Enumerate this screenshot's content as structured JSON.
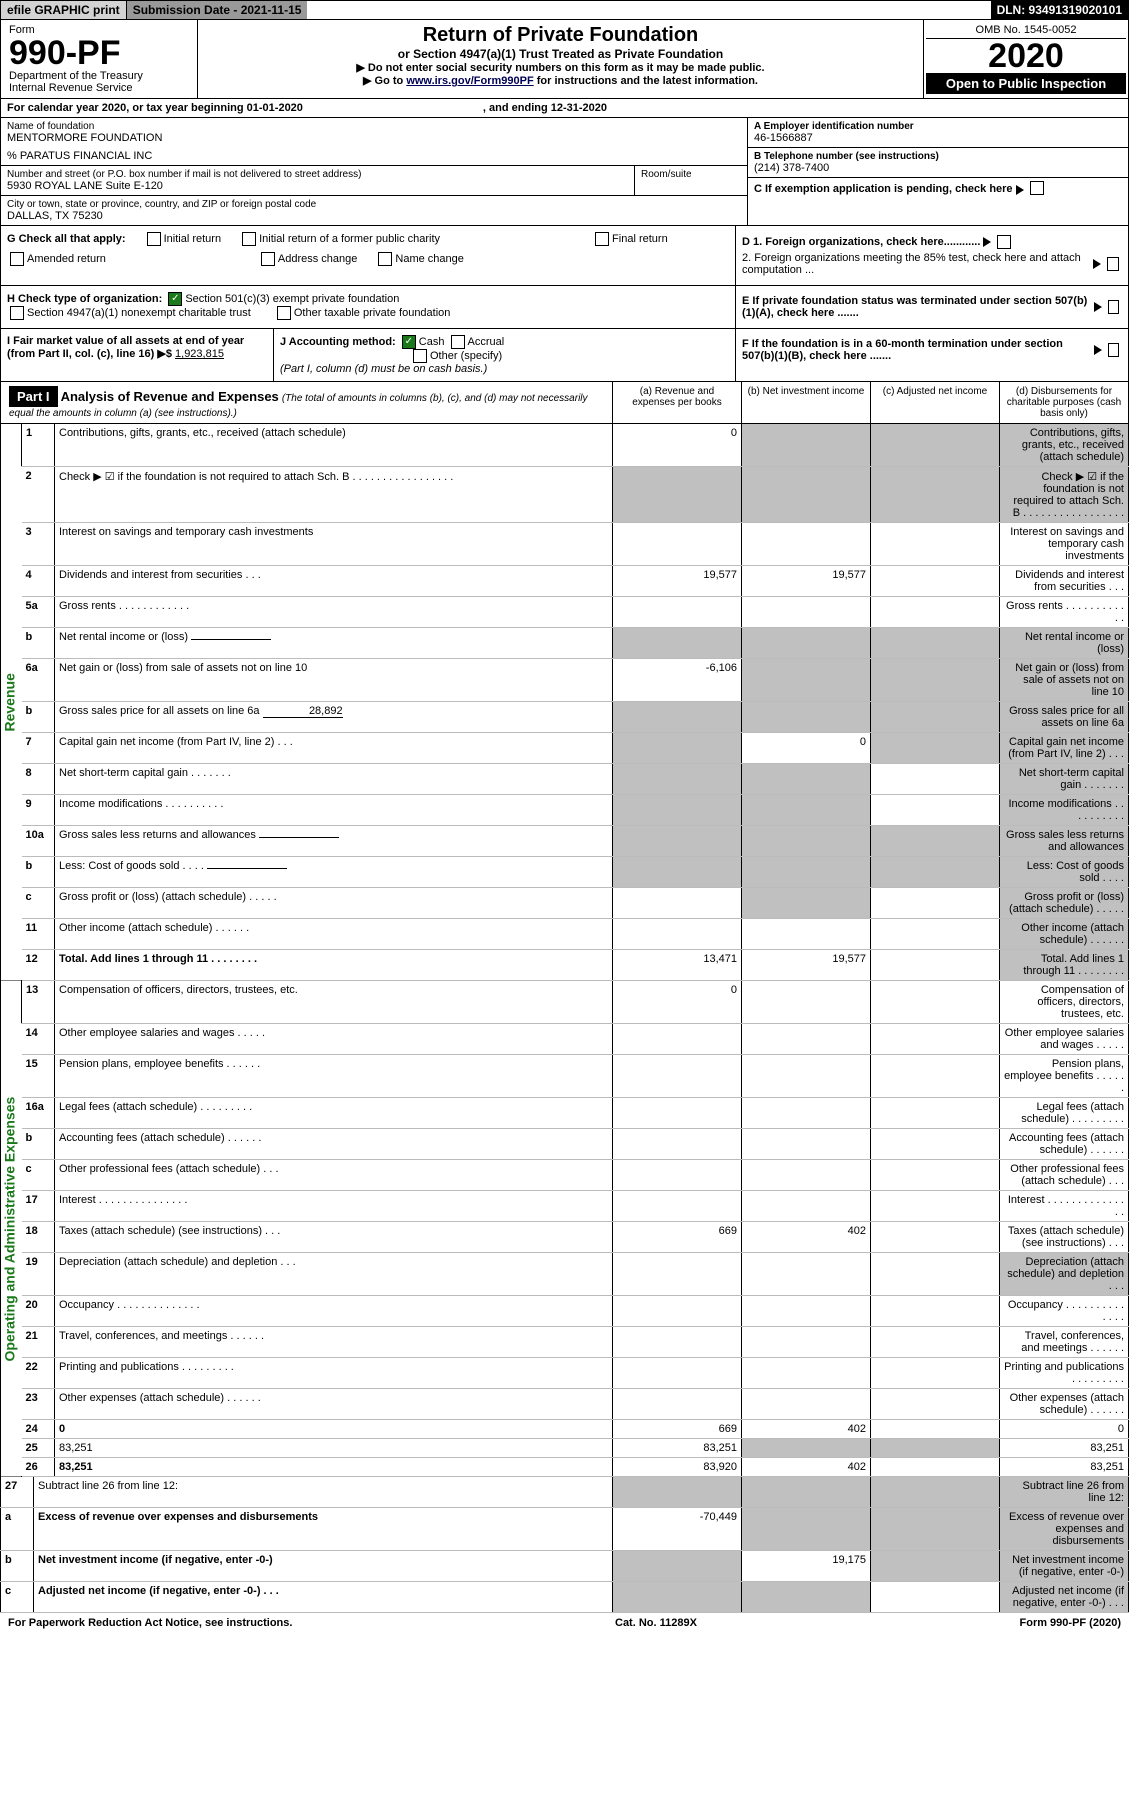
{
  "topbar": {
    "efile": "efile GRAPHIC print",
    "subdate_label": "Submission Date - 2021-11-15",
    "dln": "DLN: 93491319020101"
  },
  "header": {
    "form_label": "Form",
    "form_num": "990-PF",
    "dept": "Department of the Treasury",
    "irs": "Internal Revenue Service",
    "title": "Return of Private Foundation",
    "subtitle": "or Section 4947(a)(1) Trust Treated as Private Foundation",
    "warn1": "▶ Do not enter social security numbers on this form as it may be made public.",
    "warn2_pre": "▶ Go to ",
    "warn2_link": "www.irs.gov/Form990PF",
    "warn2_post": " for instructions and the latest information.",
    "omb": "OMB No. 1545-0052",
    "year": "2020",
    "open": "Open to Public Inspection"
  },
  "cal": {
    "line": "For calendar year 2020, or tax year beginning 01-01-2020",
    "end": ", and ending 12-31-2020"
  },
  "name": {
    "label": "Name of foundation",
    "val": "MENTORMORE FOUNDATION",
    "co": "% PARATUS FINANCIAL INC"
  },
  "ein": {
    "label": "A Employer identification number",
    "val": "46-1566887"
  },
  "addr": {
    "label": "Number and street (or P.O. box number if mail is not delivered to street address)",
    "val": "5930 ROYAL LANE Suite E-120",
    "room": "Room/suite"
  },
  "tel": {
    "label": "B Telephone number (see instructions)",
    "val": "(214) 378-7400"
  },
  "city": {
    "label": "City or town, state or province, country, and ZIP or foreign postal code",
    "val": "DALLAS, TX  75230"
  },
  "c_line": "C If exemption application is pending, check here",
  "g": {
    "label": "G Check all that apply:",
    "o1": "Initial return",
    "o2": "Initial return of a former public charity",
    "o3": "Final return",
    "o4": "Amended return",
    "o5": "Address change",
    "o6": "Name change"
  },
  "d": {
    "d1": "D 1. Foreign organizations, check here............",
    "d2": "2. Foreign organizations meeting the 85% test, check here and attach computation ..."
  },
  "e_line": "E  If private foundation status was terminated under section 507(b)(1)(A), check here .......",
  "h": {
    "label": "H Check type of organization:",
    "o1": "Section 501(c)(3) exempt private foundation",
    "o2": "Section 4947(a)(1) nonexempt charitable trust",
    "o3": "Other taxable private foundation"
  },
  "i": {
    "label": "I Fair market value of all assets at end of year (from Part II, col. (c), line 16) ▶$",
    "val": "1,923,815"
  },
  "j": {
    "label": "J Accounting method:",
    "o1": "Cash",
    "o2": "Accrual",
    "o3": "Other (specify)",
    "note": "(Part I, column (d) must be on cash basis.)"
  },
  "f_line": "F  If the foundation is in a 60-month termination under section 507(b)(1)(B), check here .......",
  "part1": {
    "label": "Part I",
    "title": "Analysis of Revenue and Expenses",
    "note": "(The total of amounts in columns (b), (c), and (d) may not necessarily equal the amounts in column (a) (see instructions).)",
    "ca": "(a)   Revenue and expenses per books",
    "cb": "(b)   Net investment income",
    "cc": "(c)   Adjusted net income",
    "cd": "(d)   Disbursements for charitable purposes (cash basis only)"
  },
  "sec_rev": "Revenue",
  "sec_exp": "Operating and Administrative Expenses",
  "rows": [
    {
      "n": "1",
      "d": "Contributions, gifts, grants, etc., received (attach schedule)",
      "a": "0",
      "shade": [
        "b",
        "c",
        "d"
      ]
    },
    {
      "n": "2",
      "d": "Check ▶ ☑ if the foundation is not required to attach Sch. B   .  .  .  .  .  .  .  .  .  .  .  .  .  .  .  .  .",
      "shade": [
        "a",
        "b",
        "c",
        "d"
      ]
    },
    {
      "n": "3",
      "d": "Interest on savings and temporary cash investments"
    },
    {
      "n": "4",
      "d": "Dividends and interest from securities   .   .   .",
      "a": "19,577",
      "b": "19,577"
    },
    {
      "n": "5a",
      "d": "Gross rents    .   .   .   .   .   .   .   .   .   .   .   ."
    },
    {
      "n": "b",
      "d": "Net rental income or (loss)",
      "inline": true,
      "shade": [
        "a",
        "b",
        "c",
        "d"
      ]
    },
    {
      "n": "6a",
      "d": "Net gain or (loss) from sale of assets not on line 10",
      "a": "-6,106",
      "shade": [
        "b",
        "c",
        "d"
      ]
    },
    {
      "n": "b",
      "d": "Gross sales price for all assets on line 6a",
      "inline": true,
      "inline_val": "28,892",
      "shade": [
        "a",
        "b",
        "c",
        "d"
      ]
    },
    {
      "n": "7",
      "d": "Capital gain net income (from Part IV, line 2)   .   .   .",
      "b": "0",
      "shade": [
        "a",
        "c",
        "d"
      ]
    },
    {
      "n": "8",
      "d": "Net short-term capital gain   .   .   .   .   .   .   .",
      "shade": [
        "a",
        "b",
        "d"
      ]
    },
    {
      "n": "9",
      "d": "Income modifications  .   .   .   .   .   .   .   .   .   .",
      "shade": [
        "a",
        "b",
        "d"
      ]
    },
    {
      "n": "10a",
      "d": "Gross sales less returns and allowances",
      "inline": true,
      "shade": [
        "a",
        "b",
        "c",
        "d"
      ]
    },
    {
      "n": "b",
      "d": "Less: Cost of goods sold    .   .   .   .",
      "inline": true,
      "shade": [
        "a",
        "b",
        "c",
        "d"
      ]
    },
    {
      "n": "c",
      "d": "Gross profit or (loss) (attach schedule)    .   .   .   .   .",
      "shade": [
        "b",
        "d"
      ]
    },
    {
      "n": "11",
      "d": "Other income (attach schedule)    .   .   .   .   .   .",
      "shade": [
        "d"
      ]
    },
    {
      "n": "12",
      "d": "Total. Add lines 1 through 11    .   .   .   .   .   .   .   .",
      "bold": true,
      "a": "13,471",
      "b": "19,577",
      "shade": [
        "d"
      ]
    }
  ],
  "rows2": [
    {
      "n": "13",
      "d": "Compensation of officers, directors, trustees, etc.",
      "a": "0"
    },
    {
      "n": "14",
      "d": "Other employee salaries and wages   .   .   .   .   ."
    },
    {
      "n": "15",
      "d": "Pension plans, employee benefits   .   .   .   .   .   ."
    },
    {
      "n": "16a",
      "d": "Legal fees (attach schedule)  .   .   .   .   .   .   .   .   ."
    },
    {
      "n": "b",
      "d": "Accounting fees (attach schedule)   .   .   .   .   .   ."
    },
    {
      "n": "c",
      "d": "Other professional fees (attach schedule)    .   .   ."
    },
    {
      "n": "17",
      "d": "Interest  .   .   .   .   .   .   .   .   .   .   .   .   .   .   ."
    },
    {
      "n": "18",
      "d": "Taxes (attach schedule) (see instructions)    .   .   .",
      "a": "669",
      "b": "402"
    },
    {
      "n": "19",
      "d": "Depreciation (attach schedule) and depletion   .   .   .",
      "shade": [
        "d"
      ]
    },
    {
      "n": "20",
      "d": "Occupancy  .   .   .   .   .   .   .   .   .   .   .   .   .   ."
    },
    {
      "n": "21",
      "d": "Travel, conferences, and meetings  .   .   .   .   .   ."
    },
    {
      "n": "22",
      "d": "Printing and publications  .   .   .   .   .   .   .   .   ."
    },
    {
      "n": "23",
      "d": "Other expenses (attach schedule)   .   .   .   .   .   ."
    },
    {
      "n": "24",
      "d": "0",
      "bold": true,
      "a": "669",
      "b": "402"
    },
    {
      "n": "25",
      "d": "83,251",
      "a": "83,251",
      "shade": [
        "b",
        "c"
      ]
    },
    {
      "n": "26",
      "d": "83,251",
      "bold": true,
      "a": "83,920",
      "b": "402"
    }
  ],
  "rows3": [
    {
      "n": "27",
      "d": "Subtract line 26 from line 12:",
      "shade": [
        "a",
        "b",
        "c",
        "d"
      ]
    },
    {
      "n": "a",
      "d": "Excess of revenue over expenses and disbursements",
      "bold": true,
      "a": "-70,449",
      "shade": [
        "b",
        "c",
        "d"
      ]
    },
    {
      "n": "b",
      "d": "Net investment income (if negative, enter -0-)",
      "bold": true,
      "b": "19,175",
      "shade": [
        "a",
        "c",
        "d"
      ]
    },
    {
      "n": "c",
      "d": "Adjusted net income (if negative, enter -0-)   .   .   .",
      "bold": true,
      "shade": [
        "a",
        "b",
        "d"
      ]
    }
  ],
  "footer": {
    "l": "For Paperwork Reduction Act Notice, see instructions.",
    "m": "Cat. No. 11289X",
    "r": "Form 990-PF (2020)"
  }
}
